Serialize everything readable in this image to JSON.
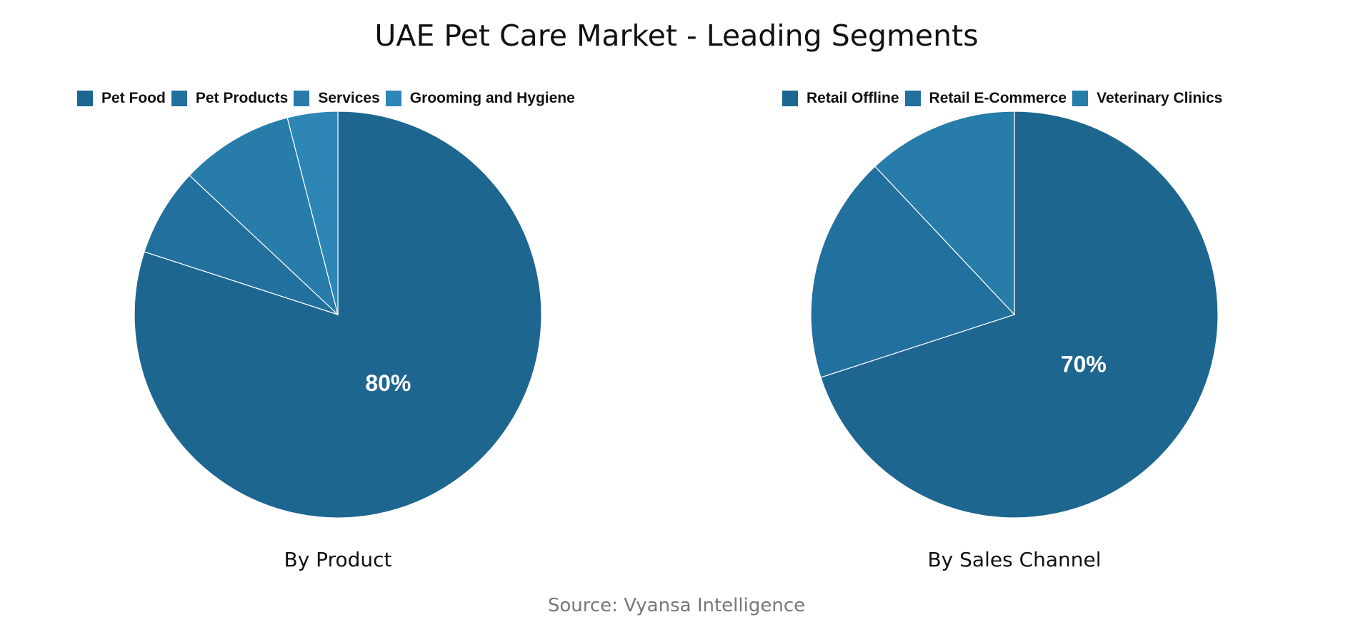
{
  "title": "UAE Pet Care Market - Leading Segments",
  "source": "Source: Vyansa Intelligence",
  "chart_data": [
    {
      "type": "pie",
      "title": "By Product",
      "legend_position": "top",
      "categories": [
        "Pet Food",
        "Pet Products",
        "Services",
        "Grooming and Hygiene"
      ],
      "values": [
        80,
        7,
        9,
        4
      ],
      "colors": [
        "#1d6690",
        "#22709e",
        "#277ca9",
        "#2d86b5"
      ],
      "data_labels": [
        "80%",
        "",
        "",
        ""
      ]
    },
    {
      "type": "pie",
      "title": "By Sales Channel",
      "legend_position": "top",
      "categories": [
        "Retail Offline",
        "Retail E-Commerce",
        "Veterinary Clinics"
      ],
      "values": [
        70,
        18,
        12
      ],
      "colors": [
        "#1d6690",
        "#22709e",
        "#277ca9"
      ],
      "data_labels": [
        "70%",
        "",
        ""
      ]
    }
  ]
}
